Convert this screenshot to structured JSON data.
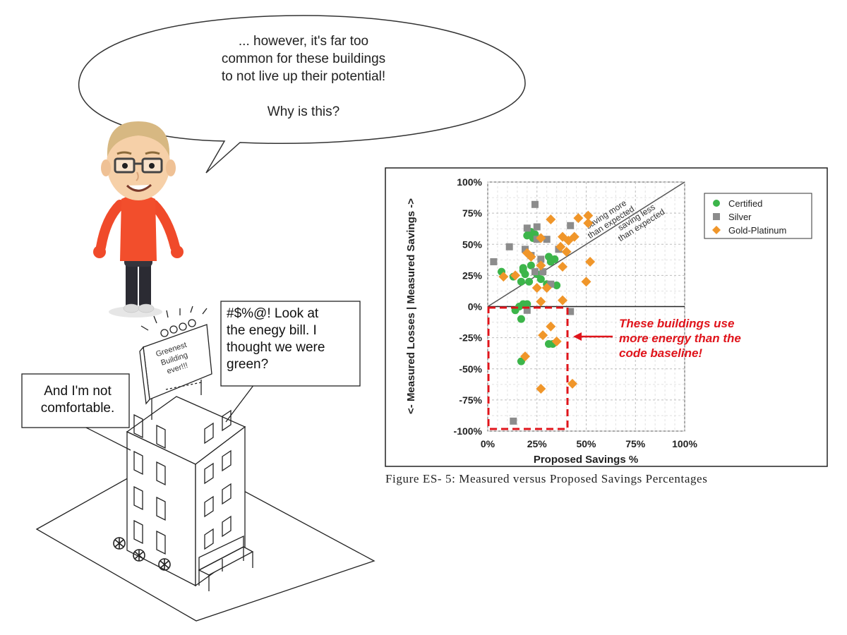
{
  "speech_bubble": {
    "lines": [
      "... however, it's far too",
      "common for these buildings",
      "to not live up their potential!",
      "",
      "Why is this?"
    ]
  },
  "complaint_box_right": {
    "lines": [
      "#$%@! Look at",
      "the enegy bill. I",
      "thought we were",
      "green?"
    ]
  },
  "complaint_box_left": {
    "lines": [
      "And I'm not",
      "comfortable."
    ]
  },
  "building_sign": {
    "lines": [
      "Greenest",
      "Building",
      "ever!!!"
    ]
  },
  "chart_data": {
    "type": "scatter",
    "title": "",
    "xlabel": "Proposed Savings %",
    "ylabel": "<- Measured Losses | Measured Savings ->",
    "xlim": [
      0,
      100
    ],
    "ylim": [
      -100,
      100
    ],
    "x_ticks": [
      "0%",
      "25%",
      "50%",
      "75%",
      "100%"
    ],
    "y_ticks": [
      "100%",
      "75%",
      "50%",
      "25%",
      "0%",
      "-25%",
      "-50%",
      "-75%",
      "-100%"
    ],
    "grid": true,
    "legend_position": "top-right",
    "diagonal_labels": {
      "above": [
        "saving more",
        "than expected"
      ],
      "below": [
        "saving less",
        "than expected"
      ]
    },
    "callout": [
      "These buildings use",
      "more energy than the",
      "code baseline!"
    ],
    "series": [
      {
        "name": "Certified",
        "color": "#3cb54a",
        "marker": "circle",
        "points": [
          [
            7,
            28
          ],
          [
            13,
            24
          ],
          [
            17,
            20
          ],
          [
            18,
            29
          ],
          [
            20,
            57
          ],
          [
            21,
            60
          ],
          [
            22,
            60
          ],
          [
            23,
            55
          ],
          [
            24,
            58
          ],
          [
            25,
            26
          ],
          [
            18,
            31
          ],
          [
            22,
            33
          ],
          [
            19,
            26
          ],
          [
            27,
            22
          ],
          [
            21,
            20
          ],
          [
            16,
            0
          ],
          [
            18,
            2
          ],
          [
            20,
            2
          ],
          [
            14,
            -3
          ],
          [
            17,
            -10
          ],
          [
            31,
            40
          ],
          [
            32,
            36
          ],
          [
            34,
            38
          ],
          [
            30,
            18
          ],
          [
            35,
            17
          ],
          [
            31,
            -30
          ],
          [
            33,
            -30
          ],
          [
            17,
            -44
          ]
        ]
      },
      {
        "name": "Silver",
        "color": "#8c8c8c",
        "marker": "square",
        "points": [
          [
            3,
            36
          ],
          [
            11,
            48
          ],
          [
            20,
            63
          ],
          [
            24,
            82
          ],
          [
            25,
            64
          ],
          [
            25,
            54
          ],
          [
            30,
            54
          ],
          [
            27,
            38
          ],
          [
            22,
            41
          ],
          [
            19,
            46
          ],
          [
            24,
            28
          ],
          [
            28,
            28
          ],
          [
            36,
            46
          ],
          [
            42,
            65
          ],
          [
            32,
            18
          ],
          [
            20,
            -3
          ],
          [
            42,
            -4
          ],
          [
            13,
            -92
          ]
        ]
      },
      {
        "name": "Gold-Platinum",
        "color": "#f0962a",
        "marker": "diamond",
        "points": [
          [
            8,
            24
          ],
          [
            14,
            25
          ],
          [
            20,
            43
          ],
          [
            22,
            40
          ],
          [
            27,
            55
          ],
          [
            32,
            70
          ],
          [
            37,
            48
          ],
          [
            38,
            56
          ],
          [
            41,
            53
          ],
          [
            44,
            56
          ],
          [
            46,
            71
          ],
          [
            51,
            73
          ],
          [
            51,
            67
          ],
          [
            38,
            32
          ],
          [
            40,
            44
          ],
          [
            27,
            33
          ],
          [
            25,
            15
          ],
          [
            30,
            15
          ],
          [
            27,
            4
          ],
          [
            38,
            5
          ],
          [
            52,
            36
          ],
          [
            50,
            20
          ],
          [
            32,
            -16
          ],
          [
            28,
            -23
          ],
          [
            35,
            -28
          ],
          [
            19,
            -40
          ],
          [
            27,
            -66
          ],
          [
            43,
            -62
          ]
        ]
      }
    ],
    "caption": "Figure ES- 5: Measured versus Proposed Savings Percentages"
  }
}
